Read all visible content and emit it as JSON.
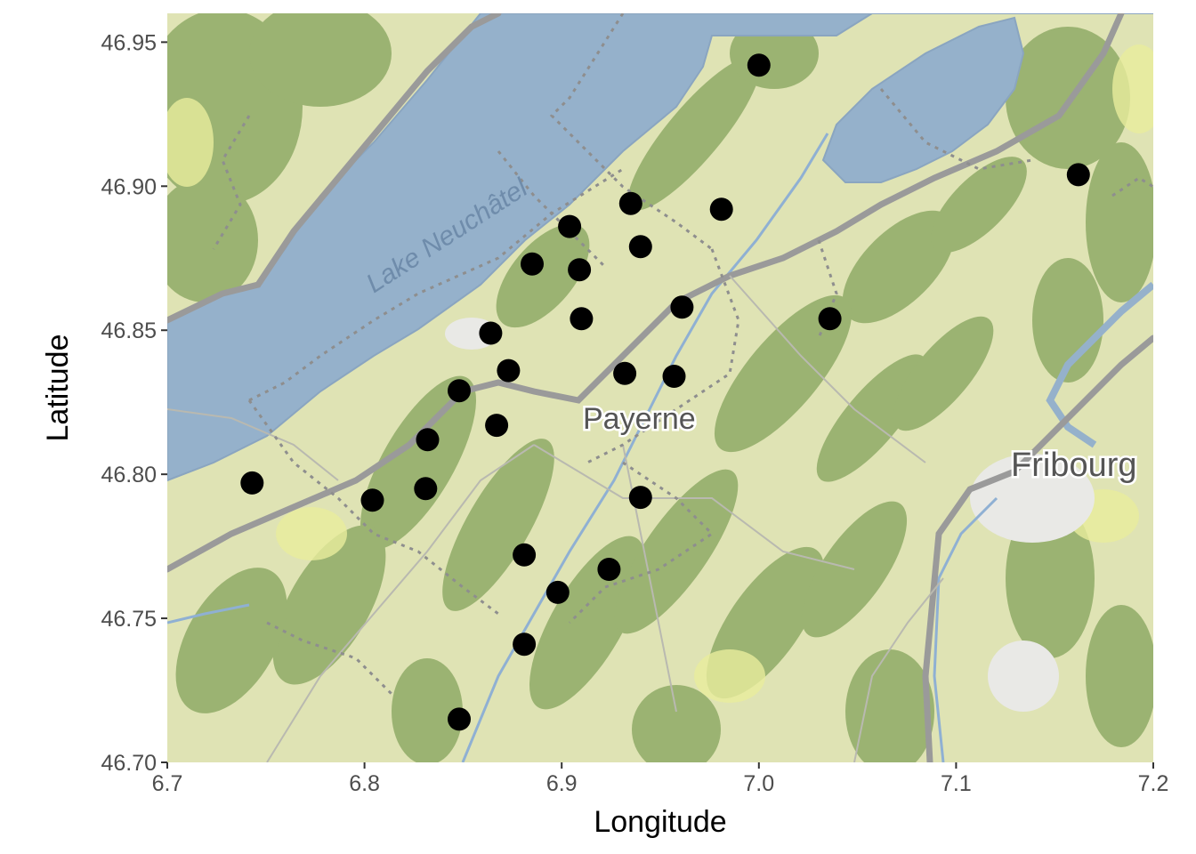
{
  "chart_data": {
    "type": "scatter",
    "title": "",
    "xlabel": "Longitude",
    "ylabel": "Latitude",
    "xlim": [
      6.7,
      7.2
    ],
    "ylim": [
      46.7,
      46.96
    ],
    "x_ticks": [
      "6.7",
      "6.8",
      "6.9",
      "7.0",
      "7.1",
      "7.2"
    ],
    "y_ticks": [
      "46.70",
      "46.75",
      "46.80",
      "46.85",
      "46.90",
      "46.95"
    ],
    "grid": false,
    "legend": "none",
    "marker_color": "#000000",
    "basemap": {
      "style": "terrain tiles",
      "place_labels": [
        "Payerne",
        "Fribourg"
      ],
      "water_labels": [
        "Lake Neuchâtel"
      ]
    },
    "points": [
      {
        "x": 7.0,
        "y": 46.942
      },
      {
        "x": 7.162,
        "y": 46.904
      },
      {
        "x": 6.935,
        "y": 46.894
      },
      {
        "x": 6.981,
        "y": 46.892
      },
      {
        "x": 6.904,
        "y": 46.886
      },
      {
        "x": 6.94,
        "y": 46.879
      },
      {
        "x": 6.885,
        "y": 46.873
      },
      {
        "x": 6.909,
        "y": 46.871
      },
      {
        "x": 6.961,
        "y": 46.858
      },
      {
        "x": 6.91,
        "y": 46.854
      },
      {
        "x": 7.036,
        "y": 46.854
      },
      {
        "x": 6.864,
        "y": 46.849
      },
      {
        "x": 6.873,
        "y": 46.836
      },
      {
        "x": 6.932,
        "y": 46.835
      },
      {
        "x": 6.957,
        "y": 46.834
      },
      {
        "x": 6.848,
        "y": 46.829
      },
      {
        "x": 6.867,
        "y": 46.817
      },
      {
        "x": 6.832,
        "y": 46.812
      },
      {
        "x": 6.743,
        "y": 46.797
      },
      {
        "x": 6.831,
        "y": 46.795
      },
      {
        "x": 6.94,
        "y": 46.792
      },
      {
        "x": 6.804,
        "y": 46.791
      },
      {
        "x": 6.881,
        "y": 46.772
      },
      {
        "x": 6.924,
        "y": 46.767
      },
      {
        "x": 6.898,
        "y": 46.759
      },
      {
        "x": 6.881,
        "y": 46.741
      },
      {
        "x": 6.848,
        "y": 46.715
      }
    ]
  }
}
